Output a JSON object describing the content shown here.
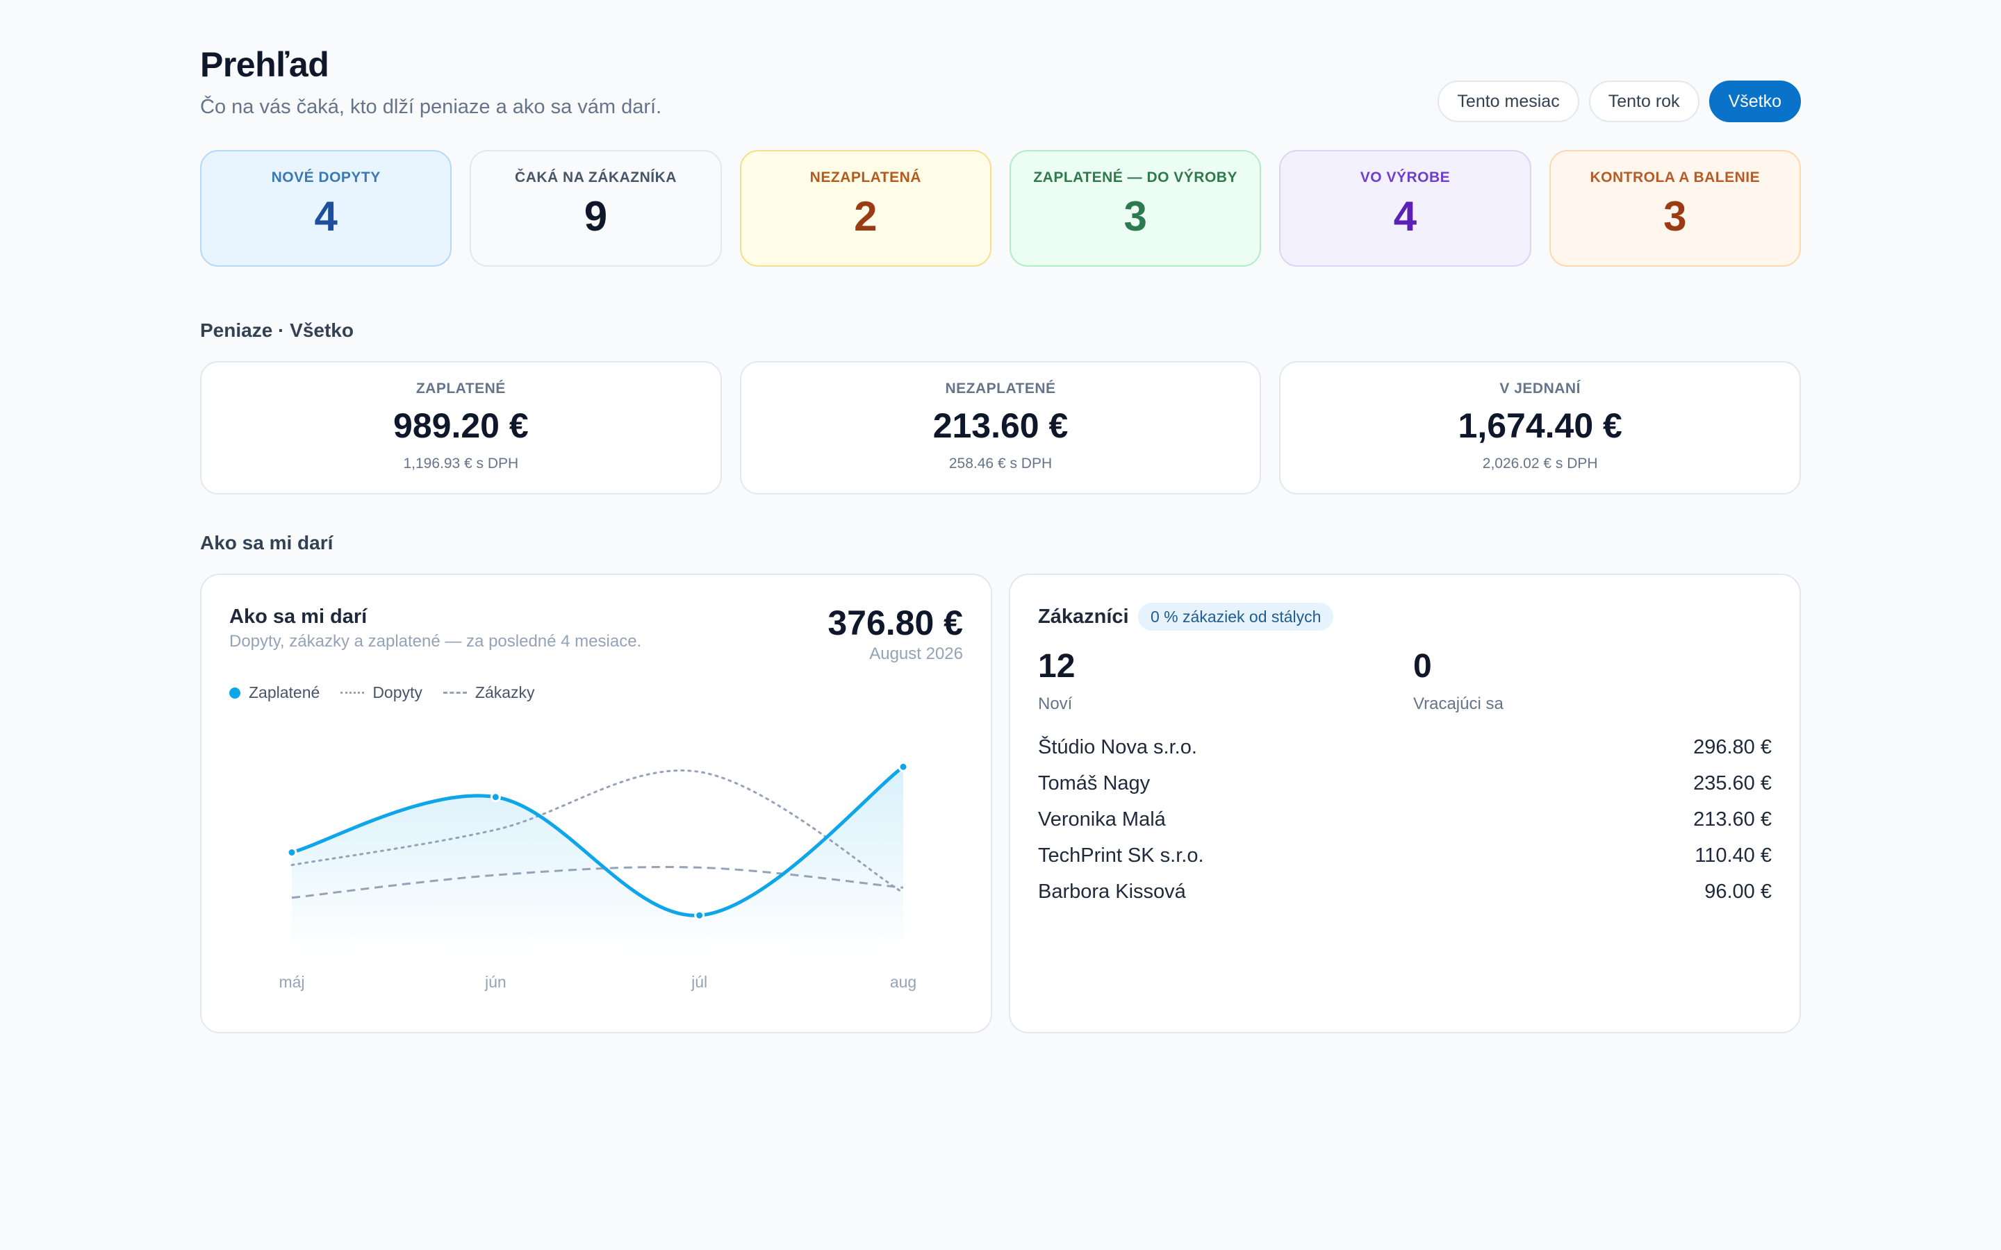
{
  "header": {
    "title": "Prehľad",
    "subtitle": "Čo na vás čaká, kto dlží peniaze a ako sa vám darí."
  },
  "range_filter": {
    "options": [
      "Tento mesiac",
      "Tento rok",
      "Všetko"
    ],
    "selected": "Všetko"
  },
  "status_cards": [
    {
      "label": "NOVÉ DOPYTY",
      "value": "4"
    },
    {
      "label": "ČAKÁ NA ZÁKAZNÍKA",
      "value": "9"
    },
    {
      "label": "NEZAPLATENÁ",
      "value": "2"
    },
    {
      "label": "ZAPLATENÉ — DO VÝROBY",
      "value": "3"
    },
    {
      "label": "VO VÝROBE",
      "value": "4"
    },
    {
      "label": "KONTROLA A BALENIE",
      "value": "3"
    }
  ],
  "money": {
    "section_title": "Peniaze · Všetko",
    "cards": [
      {
        "label": "ZAPLATENÉ",
        "value": "989.20 €",
        "sub": "1,196.93 € s DPH"
      },
      {
        "label": "NEZAPLATENÉ",
        "value": "213.60 €",
        "sub": "258.46 € s DPH"
      },
      {
        "label": "V JEDNANÍ",
        "value": "1,674.40 €",
        "sub": "2,026.02 € s DPH"
      }
    ]
  },
  "performance": {
    "section_title": "Ako sa mi darí",
    "card_title": "Ako sa mi darí",
    "card_subtitle": "Dopyty, zákazky a zaplatené — za posledné 4 mesiace.",
    "total": "376.80 €",
    "period": "August 2026"
  },
  "chart_data": {
    "type": "line",
    "categories": [
      "máj",
      "jún",
      "júl",
      "aug"
    ],
    "series": [
      {
        "name": "Zaplatené",
        "values": [
          180,
          290,
          55,
          350
        ],
        "style": "solid-area",
        "color": "#0ea5e9"
      },
      {
        "name": "Dopyty",
        "values": [
          155,
          225,
          340,
          100
        ],
        "style": "dotted",
        "color": "#94a3b8"
      },
      {
        "name": "Zákazky",
        "values": [
          90,
          135,
          150,
          110
        ],
        "style": "dashed",
        "color": "#94a3b8"
      }
    ],
    "ylim": [
      0,
      400
    ],
    "grid": false,
    "legend": "top-left"
  },
  "customers": {
    "title": "Zákazníci",
    "badge": "0 % zákaziek od stálych",
    "new_value": "12",
    "new_label": "Noví",
    "returning_value": "0",
    "returning_label": "Vracajúci sa",
    "list": [
      {
        "name": "Štúdio Nova s.r.o.",
        "amount": "296.80 €"
      },
      {
        "name": "Tomáš Nagy",
        "amount": "235.60 €"
      },
      {
        "name": "Veronika Malá",
        "amount": "213.60 €"
      },
      {
        "name": "TechPrint SK s.r.o.",
        "amount": "110.40 €"
      },
      {
        "name": "Barbora Kissová",
        "amount": "96.00 €"
      }
    ]
  }
}
